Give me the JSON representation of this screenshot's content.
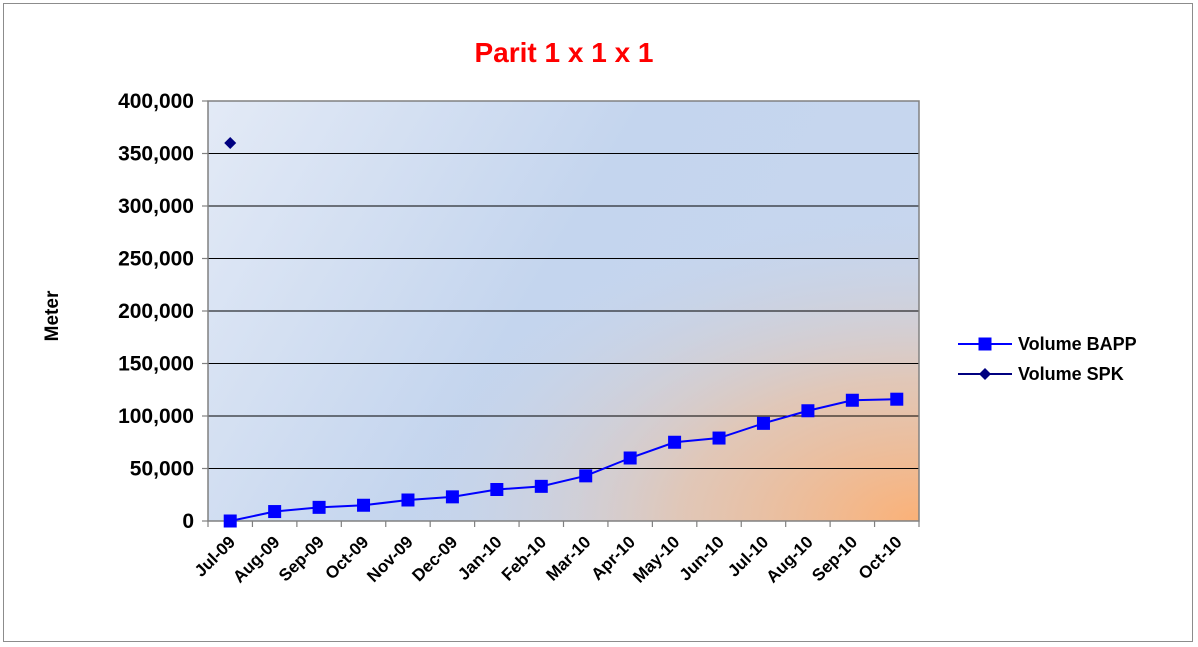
{
  "chart_data": {
    "type": "line",
    "title": "Parit 1 x 1 x 1",
    "xlabel": "",
    "ylabel": "Meter",
    "ylim": [
      0,
      400000
    ],
    "y_ticks": [
      "0",
      "50,000",
      "100,000",
      "150,000",
      "200,000",
      "250,000",
      "300,000",
      "350,000",
      "400,000"
    ],
    "grid": "horizontal",
    "legend_position": "right",
    "categories": [
      "Jul-09",
      "Aug-09",
      "Sep-09",
      "Oct-09",
      "Nov-09",
      "Dec-09",
      "Jan-10",
      "Feb-10",
      "Mar-10",
      "Apr-10",
      "May-10",
      "Jun-10",
      "Jul-10",
      "Aug-10",
      "Sep-10",
      "Oct-10"
    ],
    "series": [
      {
        "name": "Volume BAPP",
        "marker": "square",
        "color": "#0000ff",
        "values": [
          0,
          9000,
          13000,
          15000,
          20000,
          23000,
          30000,
          33000,
          43000,
          60000,
          75000,
          79000,
          93000,
          105000,
          115000,
          116000
        ]
      },
      {
        "name": "Volume SPK",
        "marker": "diamond",
        "color": "#000080",
        "values": [
          360000,
          null,
          null,
          null,
          null,
          null,
          null,
          null,
          null,
          null,
          null,
          null,
          null,
          null,
          null,
          null
        ]
      }
    ],
    "colors": {
      "title": "#ff0000",
      "grid": "#000000",
      "plot_bg_light": "#dce6f5",
      "plot_bg_mid": "#c3d4ee",
      "plot_bg_warm": "#f9b27c"
    }
  }
}
